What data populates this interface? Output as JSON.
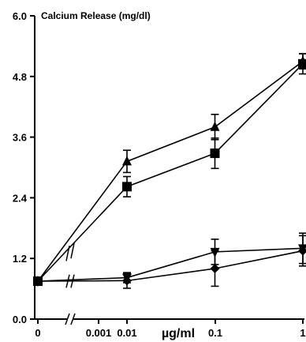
{
  "chart_data": {
    "type": "line",
    "title": "Calcium Release (mg/dl)",
    "xlabel": "µg/ml",
    "ylabel": "",
    "ylim": [
      0,
      6.0
    ],
    "y_ticks": [
      0.0,
      1.2,
      2.4,
      3.6,
      4.8,
      6.0
    ],
    "y_tick_labels": [
      "0.0",
      "1.2",
      "2.4",
      "3.6",
      "4.8",
      "6.0"
    ],
    "x_scale": "log with axis break before 0.001",
    "x_tick_labels": [
      "0",
      "0.001",
      "0.01",
      "0.1",
      "1"
    ],
    "x": [
      0,
      0.01,
      0.1,
      1
    ],
    "legend": "none",
    "grid": false,
    "series": [
      {
        "marker": "triangle-up",
        "values": [
          0.75,
          3.12,
          3.8,
          5.1
        ],
        "errors": [
          0.0,
          0.22,
          0.25,
          0.15
        ]
      },
      {
        "marker": "square",
        "values": [
          0.75,
          2.62,
          3.28,
          5.05
        ],
        "errors": [
          0.0,
          0.2,
          0.3,
          0.2
        ]
      },
      {
        "marker": "triangle-down",
        "values": [
          0.75,
          0.82,
          1.33,
          1.4
        ],
        "errors": [
          0.0,
          0.1,
          0.25,
          0.3
        ]
      },
      {
        "marker": "diamond",
        "values": [
          0.75,
          0.76,
          1.0,
          1.35
        ],
        "errors": [
          0.0,
          0.15,
          0.35,
          0.3
        ]
      }
    ]
  }
}
